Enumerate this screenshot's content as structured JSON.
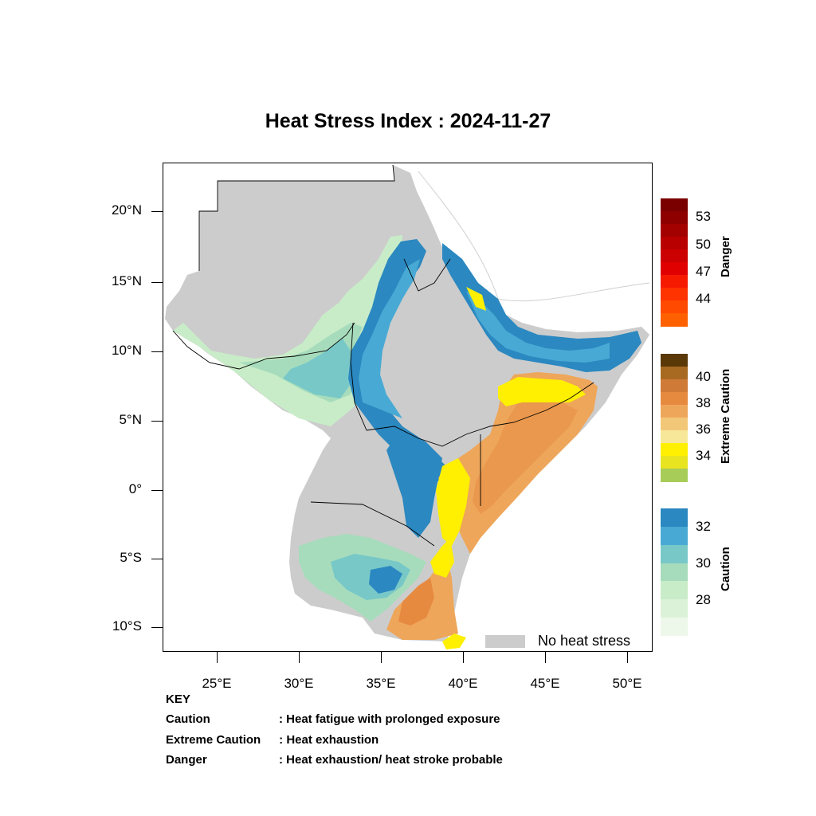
{
  "title": "Heat Stress Index : 2024-11-27",
  "axes": {
    "y_labels": [
      "20°N",
      "15°N",
      "10°N",
      "5°N",
      "0°",
      "5°S",
      "10°S"
    ],
    "x_labels": [
      "25°E",
      "30°E",
      "35°E",
      "40°E",
      "45°E",
      "50°E"
    ]
  },
  "legend": {
    "no_heat_stress": "No heat stress",
    "no_heat_stress_color": "#cccccc"
  },
  "colorbars": [
    {
      "title": "Danger",
      "labels": [
        "53",
        "50",
        "47",
        "44"
      ],
      "colors": [
        "#7a0000",
        "#8e0000",
        "#a30000",
        "#b80000",
        "#cc0000",
        "#e00000",
        "#f51a00",
        "#ff3300",
        "#ff4a00",
        "#ff6000"
      ]
    },
    {
      "title": "Extreme Caution",
      "labels": [
        "40",
        "38",
        "36",
        "34"
      ],
      "colors": [
        "#5a3808",
        "#a86a20",
        "#d07a38",
        "#e68a40",
        "#eea65a",
        "#f2c878",
        "#f6e898",
        "#fef000",
        "#e8e420",
        "#a8cc58"
      ]
    },
    {
      "title": "Caution",
      "labels": [
        "32",
        "30",
        "28"
      ],
      "colors": [
        "#2b88c0",
        "#48aad4",
        "#78c8c8",
        "#a6dcbc",
        "#c8ecc8",
        "#dcf2d8",
        "#eef8ea"
      ]
    }
  ],
  "key": {
    "heading": "KEY",
    "rows": [
      {
        "term": "Caution",
        "desc": ": Heat fatigue with prolonged exposure"
      },
      {
        "term": "Extreme Caution",
        "desc": " : Heat exhaustion"
      },
      {
        "term": "Danger",
        "desc": ": Heat exhaustion/ heat stroke probable"
      }
    ]
  }
}
